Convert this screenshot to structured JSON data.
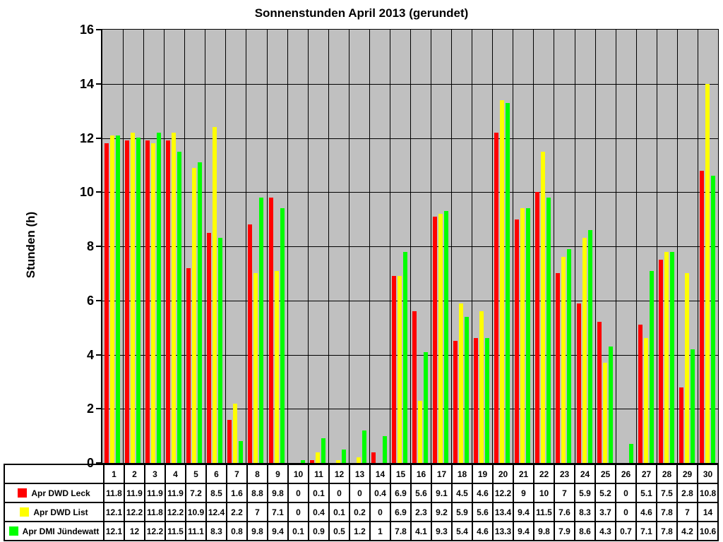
{
  "chart": {
    "title": "Sonnenstunden April 2013 (gerundet)",
    "ylabel": "Stunden (h)"
  },
  "chart_data": {
    "type": "bar",
    "title": "Sonnenstunden April 2013 (gerundet)",
    "xlabel": "",
    "ylabel": "Stunden (h)",
    "ylim": [
      0,
      16
    ],
    "y_ticks": [
      0,
      2,
      4,
      6,
      8,
      10,
      12,
      14,
      16
    ],
    "grid": true,
    "plot_background": "#C0C0C0",
    "gridline_color": "#000000",
    "legend_position": "table-left",
    "categories": [
      "1",
      "2",
      "3",
      "4",
      "5",
      "6",
      "7",
      "8",
      "9",
      "10",
      "11",
      "12",
      "13",
      "14",
      "15",
      "16",
      "17",
      "18",
      "19",
      "20",
      "21",
      "22",
      "23",
      "24",
      "25",
      "26",
      "27",
      "28",
      "29",
      "30"
    ],
    "series": [
      {
        "name": "Apr DWD Leck",
        "color": "#FF0000",
        "values": [
          11.8,
          11.9,
          11.9,
          11.9,
          7.2,
          8.5,
          1.6,
          8.8,
          9.8,
          0,
          0.1,
          0,
          0,
          0.4,
          6.9,
          5.6,
          9.1,
          4.5,
          4.6,
          12.2,
          9,
          10,
          7,
          5.9,
          5.2,
          0,
          5.1,
          7.5,
          2.8,
          10.8
        ]
      },
      {
        "name": "Apr DWD List",
        "color": "#FFFF00",
        "values": [
          12.1,
          12.2,
          11.8,
          12.2,
          10.9,
          12.4,
          2.2,
          7,
          7.1,
          0,
          0.4,
          0.1,
          0.2,
          0,
          6.9,
          2.3,
          9.2,
          5.9,
          5.6,
          13.4,
          9.4,
          11.5,
          7.6,
          8.3,
          3.7,
          0,
          4.6,
          7.8,
          7,
          14
        ]
      },
      {
        "name": "Apr DMI Jündewatt",
        "color": "#00FF00",
        "values": [
          12.1,
          12,
          12.2,
          11.5,
          11.1,
          8.3,
          0.8,
          9.8,
          9.4,
          0.1,
          0.9,
          0.5,
          1.2,
          1,
          7.8,
          4.1,
          9.3,
          5.4,
          4.6,
          13.3,
          9.4,
          9.8,
          7.9,
          8.6,
          4.3,
          0.7,
          7.1,
          7.8,
          4.2,
          10.6
        ]
      }
    ]
  }
}
